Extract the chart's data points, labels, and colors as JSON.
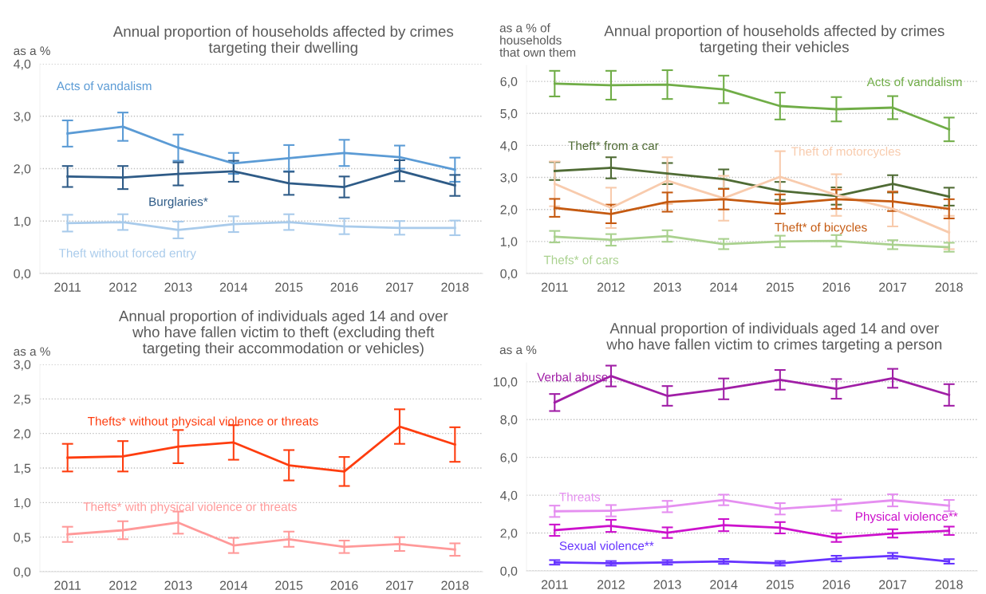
{
  "chart_data": [
    {
      "type": "line",
      "title": "Annual proportion of households affected by crimes\ntargeting their dwelling",
      "ylabel": "as a %",
      "categories": [
        "2011",
        "2012",
        "2013",
        "2014",
        "2015",
        "2016",
        "2017",
        "2018"
      ],
      "ylim": [
        0,
        4
      ],
      "yticks": [
        {
          "value": 0,
          "label": "0,0"
        },
        {
          "value": 1,
          "label": "1,0"
        },
        {
          "value": 2,
          "label": "2,0"
        },
        {
          "value": 3,
          "label": "3,0"
        },
        {
          "value": 4,
          "label": "4,0"
        }
      ],
      "grid": "y",
      "legend": false,
      "marker": "none",
      "line_style": "solid",
      "series": [
        {
          "name": "Acts of vandalism",
          "color": "#5b9bd5",
          "values": [
            2.67,
            2.8,
            2.4,
            2.1,
            2.2,
            2.3,
            2.22,
            1.98
          ],
          "errors": [
            0.25,
            0.27,
            0.25,
            0.2,
            0.25,
            0.25,
            0.22,
            0.23
          ]
        },
        {
          "name": "Burglaries*",
          "color": "#2e5b87",
          "values": [
            1.85,
            1.83,
            1.9,
            1.95,
            1.72,
            1.65,
            1.96,
            1.68
          ],
          "errors": [
            0.2,
            0.22,
            0.22,
            0.2,
            0.22,
            0.2,
            0.2,
            0.2
          ]
        },
        {
          "name": "Theft without forced entry",
          "color": "#a9cbeb",
          "values": [
            0.96,
            0.98,
            0.83,
            0.94,
            0.98,
            0.9,
            0.87,
            0.87
          ],
          "errors": [
            0.16,
            0.15,
            0.16,
            0.15,
            0.15,
            0.15,
            0.13,
            0.14
          ]
        }
      ]
    },
    {
      "type": "line",
      "title": "Annual proportion of households affected by crimes\ntargeting their vehicles",
      "ylabel": "as a % of\nhouseholds\nthat own them",
      "categories": [
        "2011",
        "2012",
        "2013",
        "2014",
        "2015",
        "2016",
        "2017",
        "2018"
      ],
      "ylim": [
        0,
        6.5
      ],
      "yticks": [
        {
          "value": 0,
          "label": "0,0"
        },
        {
          "value": 1,
          "label": "1,0"
        },
        {
          "value": 2,
          "label": "2,0"
        },
        {
          "value": 3,
          "label": "3,0"
        },
        {
          "value": 4,
          "label": "4,0"
        },
        {
          "value": 5,
          "label": "5,0"
        },
        {
          "value": 6,
          "label": "6,0"
        }
      ],
      "grid": "y",
      "legend": false,
      "marker": "none",
      "line_style": "solid",
      "series": [
        {
          "name": "Acts of vandalism",
          "color": "#70ad47",
          "values": [
            5.93,
            5.88,
            5.9,
            5.75,
            5.23,
            5.13,
            5.18,
            4.5
          ],
          "errors": [
            0.4,
            0.45,
            0.45,
            0.43,
            0.42,
            0.38,
            0.36,
            0.37
          ]
        },
        {
          "name": "Theft* from a car",
          "color": "#4f6b34",
          "values": [
            3.2,
            3.3,
            3.12,
            2.95,
            2.58,
            2.42,
            2.8,
            2.4
          ],
          "errors": [
            0.28,
            0.33,
            0.33,
            0.3,
            0.28,
            0.27,
            0.27,
            0.28
          ]
        },
        {
          "name": "Theft of motorcycles",
          "color": "#f8cbad",
          "values": [
            2.8,
            2.05,
            2.9,
            2.35,
            3.02,
            2.45,
            2.02,
            1.28
          ],
          "errors": [
            0.7,
            0.63,
            0.73,
            0.7,
            0.8,
            0.65,
            0.55,
            0.52
          ]
        },
        {
          "name": "Theft* of bicycles",
          "color": "#c55a11",
          "values": [
            2.05,
            1.86,
            2.23,
            2.32,
            2.17,
            2.32,
            2.25,
            2.02
          ],
          "errors": [
            0.28,
            0.29,
            0.3,
            0.32,
            0.3,
            0.3,
            0.3,
            0.3
          ]
        },
        {
          "name": "Thefs* of cars",
          "color": "#a9d18e",
          "values": [
            1.15,
            1.05,
            1.17,
            0.92,
            1.0,
            1.02,
            0.9,
            0.82
          ],
          "errors": [
            0.18,
            0.18,
            0.18,
            0.16,
            0.18,
            0.18,
            0.14,
            0.14
          ]
        }
      ]
    },
    {
      "type": "line",
      "title": "Annual proportion of individuals aged 14 and over\nwho have fallen victim to theft (excluding theft\ntargeting their accommodation or vehicles)",
      "ylabel": "as a %",
      "categories": [
        "2011",
        "2012",
        "2013",
        "2014",
        "2015",
        "2016",
        "2017",
        "2018"
      ],
      "ylim": [
        0,
        3
      ],
      "yticks": [
        {
          "value": 0,
          "label": "0,0"
        },
        {
          "value": 0.5,
          "label": "0,5"
        },
        {
          "value": 1,
          "label": "1,0"
        },
        {
          "value": 1.5,
          "label": "1,5"
        },
        {
          "value": 2,
          "label": "2,0"
        },
        {
          "value": 2.5,
          "label": "2,5"
        },
        {
          "value": 3,
          "label": "3,0"
        }
      ],
      "grid": "y",
      "legend": false,
      "marker": "none",
      "line_style": "solid",
      "series": [
        {
          "name": "Thefts* without physical violence or threats",
          "color": "#fe3d0f",
          "values": [
            1.65,
            1.67,
            1.81,
            1.87,
            1.54,
            1.45,
            2.1,
            1.84
          ],
          "errors": [
            0.2,
            0.22,
            0.24,
            0.25,
            0.22,
            0.21,
            0.25,
            0.25
          ]
        },
        {
          "name": "Thefts* with physical violence or threats",
          "color": "#ff9999",
          "values": [
            0.54,
            0.6,
            0.71,
            0.38,
            0.47,
            0.36,
            0.4,
            0.32
          ],
          "errors": [
            0.11,
            0.13,
            0.16,
            0.11,
            0.11,
            0.09,
            0.1,
            0.09
          ]
        }
      ]
    },
    {
      "type": "line",
      "title": "Annual proportion of individuals aged 14 and over\nwho have fallen victim to crimes targeting a person",
      "ylabel": "as a %",
      "categories": [
        "2011",
        "2012",
        "2013",
        "2014",
        "2015",
        "2016",
        "2017",
        "2018"
      ],
      "ylim": [
        0,
        11
      ],
      "yticks": [
        {
          "value": 0,
          "label": "0,0"
        },
        {
          "value": 2,
          "label": "2,0"
        },
        {
          "value": 4,
          "label": "4,0"
        },
        {
          "value": 6,
          "label": "6,0"
        },
        {
          "value": 8,
          "label": "8,0"
        },
        {
          "value": 10,
          "label": "10,0"
        }
      ],
      "grid": "y",
      "legend": false,
      "marker": "none",
      "line_style": "solid",
      "series": [
        {
          "name": "Verbal abuse",
          "color": "#a01ea6",
          "values": [
            8.9,
            10.3,
            9.25,
            9.62,
            10.1,
            9.62,
            10.18,
            9.3
          ],
          "errors": [
            0.45,
            0.55,
            0.52,
            0.55,
            0.52,
            0.52,
            0.5,
            0.57
          ]
        },
        {
          "name": "Threats",
          "color": "#e58ff0",
          "values": [
            3.15,
            3.18,
            3.4,
            3.75,
            3.28,
            3.48,
            3.73,
            3.45
          ],
          "errors": [
            0.3,
            0.3,
            0.3,
            0.28,
            0.3,
            0.3,
            0.32,
            0.3
          ]
        },
        {
          "name": "Physical violence**",
          "color": "#cc11cc",
          "values": [
            2.15,
            2.38,
            2.02,
            2.42,
            2.28,
            1.75,
            1.98,
            2.12
          ],
          "errors": [
            0.3,
            0.32,
            0.28,
            0.32,
            0.3,
            0.22,
            0.22,
            0.22
          ]
        },
        {
          "name": "Sexual violence**",
          "color": "#6633ff",
          "values": [
            0.45,
            0.4,
            0.45,
            0.5,
            0.4,
            0.65,
            0.8,
            0.5
          ],
          "errors": [
            0.12,
            0.12,
            0.12,
            0.13,
            0.12,
            0.15,
            0.15,
            0.12
          ]
        }
      ]
    }
  ]
}
